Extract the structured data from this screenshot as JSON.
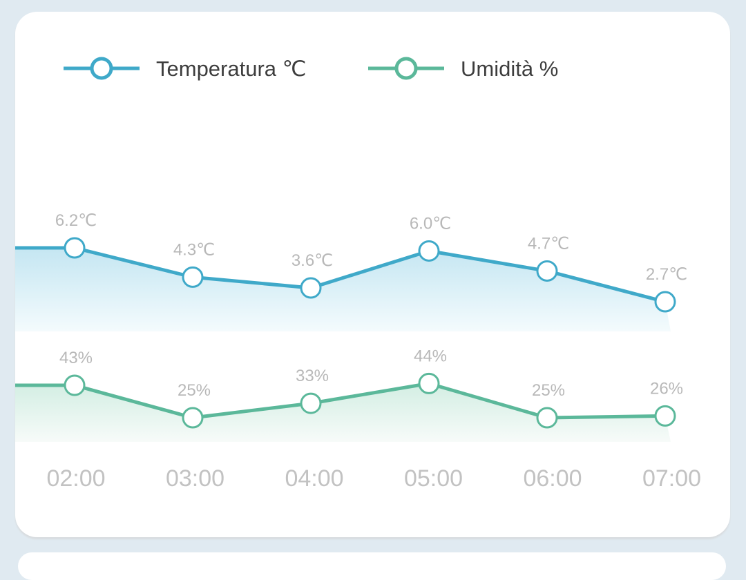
{
  "chart_data": {
    "type": "line",
    "title": "",
    "xlabel": "",
    "ylabel": "",
    "categories": [
      "02:00",
      "03:00",
      "04:00",
      "05:00",
      "06:00",
      "07:00"
    ],
    "series": [
      {
        "name": "Temperatura ℃",
        "color": "#3fa9c9",
        "values": [
          6.2,
          4.3,
          3.6,
          6.0,
          4.7,
          2.7
        ],
        "labels": [
          "6.2℃",
          "4.3℃",
          "3.6℃",
          "6.0℃",
          "4.7℃",
          "2.7℃"
        ]
      },
      {
        "name": "Umidità %",
        "color": "#5bb89a",
        "values": [
          43,
          25,
          33,
          44,
          25,
          26
        ],
        "labels": [
          "43%",
          "25%",
          "33%",
          "44%",
          "25%",
          "26%"
        ]
      }
    ],
    "legend": "top-left",
    "grid": false
  }
}
